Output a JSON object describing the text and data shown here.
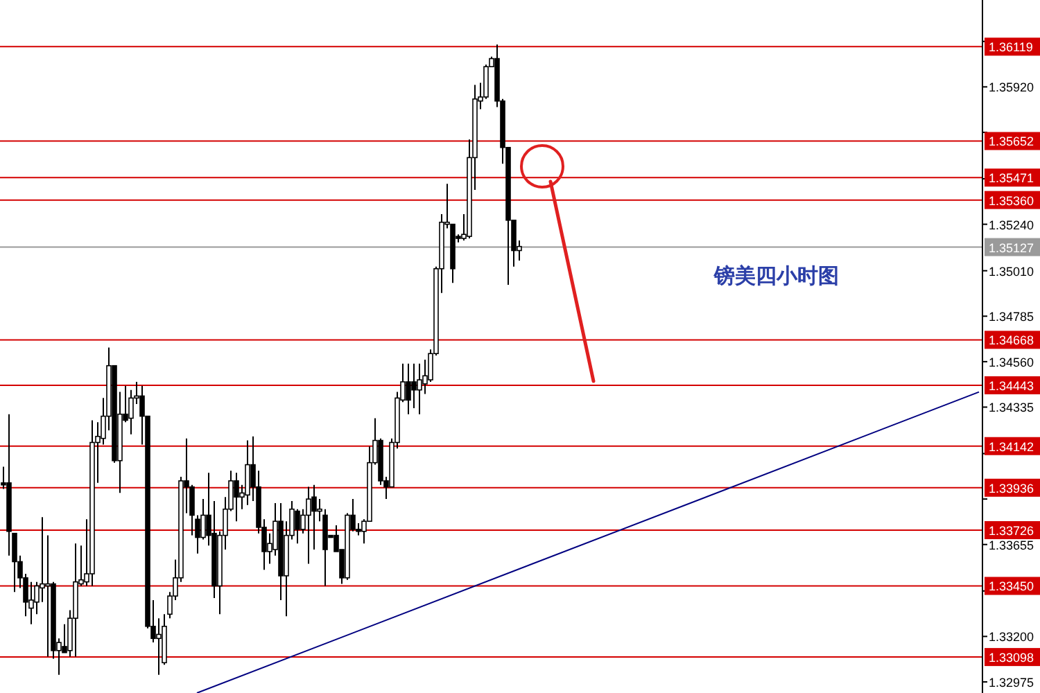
{
  "chart_data": {
    "type": "candlestick",
    "tick_labels": "y",
    "categories": [
      null,
      null,
      null,
      null,
      null,
      null,
      null,
      null,
      null,
      null,
      null,
      null,
      null,
      null,
      null,
      null,
      null,
      null,
      null,
      null,
      null,
      null,
      null,
      null,
      null,
      null,
      null,
      null,
      null,
      null,
      null,
      null,
      null,
      null,
      null,
      null,
      null,
      null,
      null,
      null,
      null,
      null,
      null,
      null,
      null,
      null,
      null,
      null,
      null,
      null,
      null,
      null,
      null,
      null,
      null,
      null,
      null,
      null,
      null,
      null,
      null,
      null,
      null,
      null,
      null,
      null,
      null,
      null,
      null,
      null,
      null,
      null,
      null,
      null,
      null,
      null,
      null,
      null,
      null,
      null,
      null,
      null,
      null,
      null,
      null,
      null,
      null,
      null,
      null,
      null,
      null,
      null,
      null,
      null,
      null,
      null,
      null,
      null,
      null,
      null,
      null,
      null,
      null,
      null,
      null,
      null,
      null,
      null,
      null,
      null,
      null,
      null,
      null,
      null,
      null,
      null,
      null,
      null,
      null,
      null,
      null,
      null,
      null,
      null,
      null,
      null,
      null,
      null,
      null,
      null,
      null,
      null,
      null,
      null,
      null,
      null,
      null,
      null,
      null,
      null,
      null,
      null,
      null,
      null,
      null,
      null,
      null,
      null,
      null,
      null,
      null,
      null,
      null,
      null,
      null,
      null,
      null,
      null,
      null,
      null,
      null,
      null,
      null,
      null,
      null,
      null,
      null,
      null,
      null,
      null,
      null,
      null,
      null,
      null,
      null,
      null,
      null
    ],
    "ohlc": [
      [
        1.3396,
        1.3404,
        1.3393,
        1.3395
      ],
      [
        1.3396,
        1.343,
        1.336,
        1.3372
      ],
      [
        1.3371,
        1.3371,
        1.3342,
        1.3357
      ],
      [
        1.3357,
        1.336,
        1.3344,
        1.3349
      ],
      [
        1.3349,
        1.3351,
        1.333,
        1.3337
      ],
      [
        1.3334,
        1.3347,
        1.3326,
        1.3338
      ],
      [
        1.3337,
        1.3347,
        1.3331,
        1.3345
      ],
      [
        1.3344,
        1.3379,
        1.3337,
        1.3346
      ],
      [
        1.3345,
        1.337,
        1.331,
        1.3346
      ],
      [
        1.3346,
        1.3347,
        1.3309,
        1.3313
      ],
      [
        1.3313,
        1.3319,
        1.3301,
        1.3317
      ],
      [
        1.3315,
        1.3326,
        1.3312,
        1.3312
      ],
      [
        1.3313,
        1.3333,
        1.331,
        1.3329
      ],
      [
        1.3329,
        1.3366,
        1.331,
        1.3347
      ],
      [
        1.3346,
        1.3365,
        1.3345,
        1.3348
      ],
      [
        1.3347,
        1.3378,
        1.3345,
        1.3351
      ],
      [
        1.3351,
        1.3427,
        1.3345,
        1.3416
      ],
      [
        1.3416,
        1.3426,
        1.3396,
        1.3419
      ],
      [
        1.3418,
        1.3438,
        1.3415,
        1.3429
      ],
      [
        1.3429,
        1.3463,
        1.3422,
        1.3454
      ],
      [
        1.3454,
        1.3454,
        1.3406,
        1.3407
      ],
      [
        1.3407,
        1.3441,
        1.3391,
        1.343
      ],
      [
        1.343,
        1.3444,
        1.3426,
        1.3427
      ],
      [
        1.3428,
        1.3442,
        1.342,
        1.3438
      ],
      [
        1.3438,
        1.3446,
        1.3435,
        1.3439
      ],
      [
        1.3439,
        1.3444,
        1.3415,
        1.3429
      ],
      [
        1.3429,
        1.3429,
        1.3324,
        1.3325
      ],
      [
        1.3325,
        1.3338,
        1.3317,
        1.3319
      ],
      [
        1.3319,
        1.3329,
        1.3301,
        1.3321
      ],
      [
        1.3307,
        1.3331,
        1.3306,
        1.3325
      ],
      [
        1.3331,
        1.3342,
        1.3329,
        1.334
      ],
      [
        1.334,
        1.3358,
        1.3338,
        1.3349
      ],
      [
        1.3349,
        1.3399,
        1.3347,
        1.3397
      ],
      [
        1.3397,
        1.3418,
        1.3381,
        1.3394
      ],
      [
        1.3394,
        1.3395,
        1.337,
        1.338
      ],
      [
        1.3378,
        1.338,
        1.3361,
        1.3369
      ],
      [
        1.3369,
        1.3388,
        1.3368,
        1.338
      ],
      [
        1.338,
        1.3401,
        1.3365,
        1.337
      ],
      [
        1.3371,
        1.3387,
        1.3339,
        1.3345
      ],
      [
        1.3345,
        1.3372,
        1.3331,
        1.337
      ],
      [
        1.337,
        1.3389,
        1.3363,
        1.3383
      ],
      [
        1.3383,
        1.3402,
        1.3382,
        1.3397
      ],
      [
        1.3397,
        1.3401,
        1.3377,
        1.3389
      ],
      [
        1.3389,
        1.3395,
        1.3383,
        1.3391
      ],
      [
        1.339,
        1.3417,
        1.3385,
        1.3405
      ],
      [
        1.3405,
        1.3419,
        1.3387,
        1.3394
      ],
      [
        1.3394,
        1.3402,
        1.3371,
        1.3374
      ],
      [
        1.3374,
        1.3378,
        1.3353,
        1.3362
      ],
      [
        1.3362,
        1.3371,
        1.3356,
        1.3366
      ],
      [
        1.3363,
        1.3386,
        1.336,
        1.3377
      ],
      [
        1.3377,
        1.3386,
        1.3338,
        1.335
      ],
      [
        1.335,
        1.3377,
        1.333,
        1.337
      ],
      [
        1.337,
        1.3387,
        1.3368,
        1.3383
      ],
      [
        1.3382,
        1.3383,
        1.3366,
        1.3373
      ],
      [
        1.3373,
        1.3383,
        1.3371,
        1.338
      ],
      [
        1.338,
        1.3394,
        1.3356,
        1.3388
      ],
      [
        1.3389,
        1.3395,
        1.3363,
        1.3382
      ],
      [
        1.3382,
        1.3388,
        1.3377,
        1.3383
      ],
      [
        1.338,
        1.3383,
        1.3345,
        1.3363
      ],
      [
        1.337,
        1.337,
        1.3369,
        1.3369
      ],
      [
        1.337,
        1.3375,
        1.3362,
        1.3362
      ],
      [
        1.3363,
        1.3363,
        1.3346,
        1.3349
      ],
      [
        1.3349,
        1.3381,
        1.3348,
        1.338
      ],
      [
        1.338,
        1.3388,
        1.3372,
        1.3373
      ],
      [
        1.3373,
        1.3376,
        1.337,
        1.3372
      ],
      [
        1.3372,
        1.3378,
        1.3366,
        1.3377
      ],
      [
        1.3377,
        1.3414,
        1.3377,
        1.3406
      ],
      [
        1.3406,
        1.3428,
        1.3405,
        1.3417
      ],
      [
        1.3417,
        1.3418,
        1.3395,
        1.3397
      ],
      [
        1.3397,
        1.3399,
        1.3388,
        1.3394
      ],
      [
        1.3394,
        1.3418,
        1.3394,
        1.3416
      ],
      [
        1.3416,
        1.3441,
        1.3413,
        1.3438
      ],
      [
        1.3437,
        1.3455,
        1.3436,
        1.3446
      ],
      [
        1.3446,
        1.3455,
        1.343,
        1.3437
      ],
      [
        1.3446,
        1.3455,
        1.3433,
        1.3442
      ],
      [
        1.3442,
        1.3455,
        1.343,
        1.3447
      ],
      [
        1.3445,
        1.3457,
        1.344,
        1.3449
      ],
      [
        1.3447,
        1.3462,
        1.3446,
        1.346
      ],
      [
        1.346,
        1.3503,
        1.3459,
        1.3502
      ],
      [
        1.3502,
        1.3529,
        1.349,
        1.3525
      ],
      [
        1.3524,
        1.3544,
        1.3522,
        1.3525
      ],
      [
        1.3524,
        1.3524,
        1.3495,
        1.3502
      ],
      [
        1.3518,
        1.3519,
        1.3515,
        1.3517
      ],
      [
        1.3517,
        1.3529,
        1.3516,
        1.3519
      ],
      [
        1.3518,
        1.3566,
        1.3517,
        1.3557
      ],
      [
        1.3557,
        1.3593,
        1.3541,
        1.3586
      ],
      [
        1.3585,
        1.3594,
        1.3581,
        1.3587
      ],
      [
        1.3587,
        1.3603,
        1.3586,
        1.3602
      ],
      [
        1.3602,
        1.3607,
        1.3602,
        1.3606
      ],
      [
        1.3606,
        1.3613,
        1.3582,
        1.3585
      ],
      [
        1.3585,
        1.3586,
        1.3554,
        1.3562
      ],
      [
        1.3562,
        1.3562,
        1.3494,
        1.3526
      ],
      [
        1.3526,
        1.3526,
        1.3503,
        1.3511
      ],
      [
        1.3511,
        1.3516,
        1.3506,
        1.3513
      ],
      null,
      null,
      null,
      null,
      null,
      null,
      null,
      null,
      null,
      null,
      null,
      null,
      null,
      null,
      null,
      null,
      null,
      null,
      null,
      null,
      null,
      null,
      null,
      null,
      null,
      null,
      null,
      null,
      null,
      null,
      null,
      null,
      null,
      null,
      null,
      null,
      null,
      null,
      null,
      null,
      null,
      null,
      null,
      null,
      null,
      null,
      null,
      null,
      null,
      null,
      null,
      null,
      null,
      null,
      null,
      null,
      null,
      null,
      null,
      null,
      null,
      null,
      null,
      null,
      null,
      null,
      null,
      null,
      null,
      null,
      null,
      null,
      null,
      null,
      null,
      null,
      null,
      null,
      null,
      null,
      null,
      null,
      null
    ],
    "series": [
      {
        "type": "line",
        "color": "#000080",
        "values": [
          null,
          null,
          null,
          null,
          null,
          null,
          null,
          null,
          null,
          null,
          null,
          null,
          null,
          null,
          null,
          null,
          null,
          null,
          null,
          null,
          null,
          null,
          null,
          null,
          null,
          null,
          null,
          null,
          null,
          null,
          null,
          null,
          null,
          null,
          null,
          1.3292,
          null,
          null,
          null,
          null,
          null,
          null,
          null,
          null,
          null,
          null,
          null,
          null,
          null,
          null,
          null,
          null,
          null,
          null,
          null,
          null,
          null,
          null,
          null,
          null,
          null,
          null,
          null,
          null,
          null,
          null,
          null,
          null,
          null,
          null,
          null,
          null,
          null,
          null,
          null,
          null,
          null,
          null,
          null,
          null,
          null,
          null,
          null,
          null,
          null,
          null,
          null,
          null,
          null,
          null,
          null,
          null,
          null,
          null,
          null,
          null,
          null,
          null,
          null,
          null,
          null,
          null,
          null,
          null,
          null,
          null,
          null,
          null,
          null,
          null,
          null,
          null,
          null,
          null,
          null,
          null,
          null,
          null,
          null,
          null,
          null,
          null,
          null,
          null,
          null,
          null,
          null,
          null,
          null,
          null,
          null,
          null,
          null,
          null,
          null,
          null,
          null,
          null,
          null,
          null,
          null,
          null,
          null,
          null,
          null,
          null,
          null,
          null,
          null,
          null,
          null,
          null,
          null,
          null,
          null,
          null,
          null,
          null,
          null,
          null,
          null,
          null,
          null,
          null,
          null,
          null,
          null,
          null,
          null,
          null,
          null,
          null,
          null,
          null,
          null,
          null,
          1.3441
        ]
      }
    ],
    "ylim": [
      1.3292,
      1.3635
    ],
    "yticks": [
      {
        "value": 1.36145,
        "label": null
      },
      {
        "value": 1.3592,
        "label": "1.35920"
      },
      {
        "value": 1.35695,
        "label": null
      },
      {
        "value": 1.35465,
        "label": null
      },
      {
        "value": 1.3524,
        "label": "1.35240"
      },
      {
        "value": 1.3501,
        "label": "1.35010"
      },
      {
        "value": 1.34785,
        "label": "1.34785"
      },
      {
        "value": 1.3456,
        "label": "1.34560"
      },
      {
        "value": 1.34335,
        "label": "1.34335"
      },
      {
        "value": 1.34105,
        "label": null
      },
      {
        "value": 1.3388,
        "label": null
      },
      {
        "value": 1.33655,
        "label": "1.33655"
      },
      {
        "value": 1.33425,
        "label": null
      },
      {
        "value": 1.332,
        "label": "1.33200"
      },
      {
        "value": 1.32975,
        "label": "1.32975"
      }
    ],
    "ref_lines": [
      {
        "axis": "y",
        "value": 1.36119,
        "label": "1.36119",
        "color": "#d40000"
      },
      {
        "axis": "y",
        "value": 1.35652,
        "label": "1.35652",
        "color": "#d40000"
      },
      {
        "axis": "y",
        "value": 1.35471,
        "label": "1.35471",
        "color": "#d40000"
      },
      {
        "axis": "y",
        "value": 1.3536,
        "label": "1.35360",
        "color": "#d40000"
      },
      {
        "axis": "y",
        "value": 1.35127,
        "label": "1.35127",
        "color": "#9a9a9a"
      },
      {
        "axis": "y",
        "value": 1.34668,
        "label": "1.34668",
        "color": "#d40000"
      },
      {
        "axis": "y",
        "value": 1.34443,
        "label": "1.34443",
        "color": "#d40000"
      },
      {
        "axis": "y",
        "value": 1.34142,
        "label": "1.34142",
        "color": "#d40000"
      },
      {
        "axis": "y",
        "value": 1.33936,
        "label": "1.33936",
        "color": "#d40000"
      },
      {
        "axis": "y",
        "value": 1.33726,
        "label": "1.33726",
        "color": "#d40000"
      },
      {
        "axis": "y",
        "value": 1.3345,
        "label": "1.33450",
        "color": "#d40000"
      },
      {
        "axis": "y",
        "value": 1.33098,
        "label": "1.33098",
        "color": "#d40000"
      }
    ],
    "annotations": [
      "镑美四小时图"
    ]
  }
}
